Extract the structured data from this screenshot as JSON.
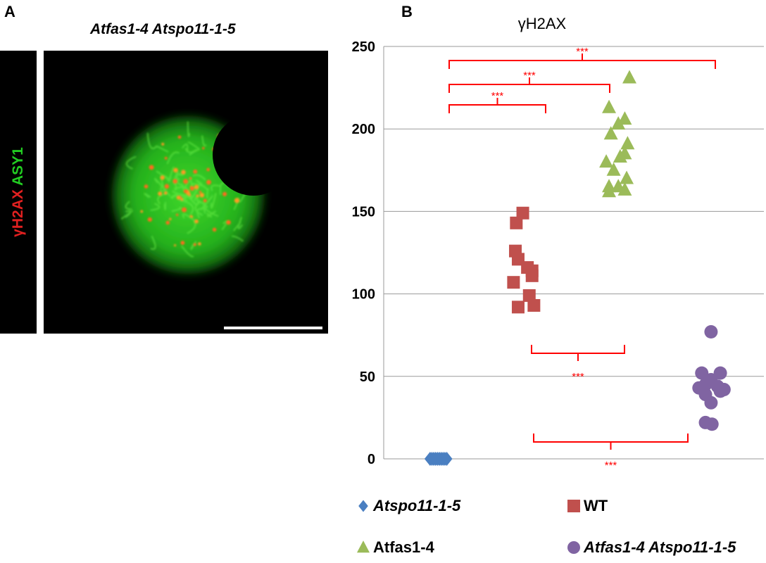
{
  "panel_a": {
    "letter": "A",
    "title": "Atfas1-4 Atspo11-1-5",
    "channel_1": "γH2AX",
    "channel_2": "ASY1",
    "channel_1_color": "#e02020",
    "channel_2_color": "#22cc22"
  },
  "panel_b": {
    "letter": "B"
  },
  "chart_data": {
    "type": "scatter",
    "title": "γH2AX",
    "xlabel": "",
    "ylabel": "",
    "ylim": [
      0,
      250
    ],
    "yticks": [
      0,
      50,
      100,
      150,
      200,
      250
    ],
    "grid": true,
    "legend_position": "bottom",
    "series": [
      {
        "name": "Atspo11-1-5",
        "marker": "diamond",
        "color": "#4a7fc1",
        "italic": true,
        "x": [
          1,
          1.02,
          1.04,
          1.06,
          1.08,
          1.1,
          1.12,
          1.14,
          1.16,
          1.18
        ],
        "y": [
          0,
          0,
          0,
          0,
          0,
          0,
          0,
          0,
          0,
          0
        ]
      },
      {
        "name": "WT",
        "marker": "square",
        "color": "#c0504d",
        "italic": false,
        "x": [
          1.93,
          2.0,
          1.92,
          1.95,
          2.1,
          2.05,
          1.9,
          2.07,
          2.12,
          1.95,
          2.1
        ],
        "y": [
          143,
          149,
          126,
          121,
          114,
          116,
          107,
          99,
          93,
          92,
          111
        ]
      },
      {
        "name": "Atfas1-4",
        "marker": "triangle",
        "color": "#9bbb59",
        "italic": false,
        "x": [
          3.15,
          2.93,
          3.1,
          3.03,
          2.95,
          3.13,
          2.9,
          3.1,
          3.05,
          2.98,
          3.12,
          2.93,
          3.03,
          3.1,
          2.93
        ],
        "y": [
          231,
          213,
          206,
          203,
          197,
          191,
          180,
          185,
          183,
          175,
          170,
          165,
          165,
          163,
          162
        ]
      },
      {
        "name": "Atfas1-4 Atspo11-1-5",
        "marker": "circle",
        "color": "#8064a2",
        "italic": true,
        "x": [
          4.03,
          3.93,
          4.13,
          4.03,
          3.97,
          4.1,
          4.17,
          3.9,
          3.97,
          4.13,
          4.03,
          3.97,
          4.04
        ],
        "y": [
          77,
          52,
          52,
          48,
          45,
          44,
          42,
          43,
          39,
          41,
          34,
          22,
          21
        ]
      }
    ],
    "significance": [
      {
        "label": "***",
        "from": "Atspo11-1-5",
        "to": "WT",
        "position": "above"
      },
      {
        "label": "***",
        "from": "Atspo11-1-5",
        "to": "Atfas1-4",
        "position": "above"
      },
      {
        "label": "***",
        "from": "Atspo11-1-5",
        "to": "Atfas1-4 Atspo11-1-5",
        "position": "above"
      },
      {
        "label": "***",
        "from": "WT",
        "to": "Atfas1-4 Atspo11-1-5",
        "position": "below"
      },
      {
        "label": "***",
        "from": "WT",
        "to": "Atfas1-4 Atspo11-1-5",
        "position": "below-lower"
      }
    ],
    "significance_color": "#ff0000"
  }
}
